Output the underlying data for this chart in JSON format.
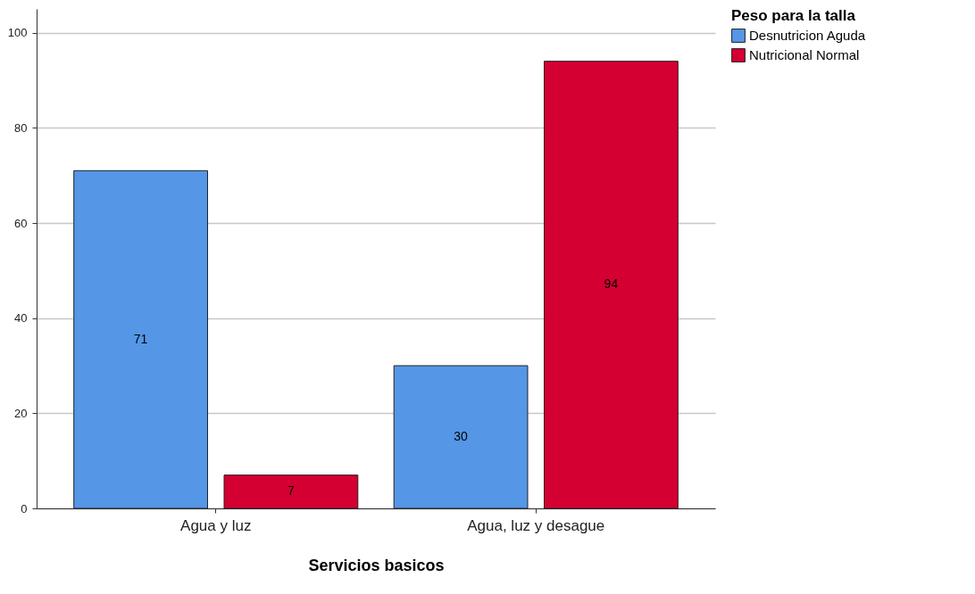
{
  "chart_data": {
    "type": "bar",
    "xlabel": "Servicios basicos",
    "legend_title": "Peso para la talla",
    "categories": [
      "Agua y luz",
      "Agua, luz y desague"
    ],
    "series": [
      {
        "name": "Desnutricion Aguda",
        "color": "#5596e6",
        "values": [
          71,
          30
        ]
      },
      {
        "name": "Nutricional Normal",
        "color": "#d50032",
        "values": [
          7,
          94
        ]
      }
    ],
    "ylim": [
      0,
      105
    ],
    "yticks": [
      0,
      20,
      40,
      60,
      80,
      100
    ],
    "grid": "y",
    "legend": "top right",
    "data_labels": true
  }
}
